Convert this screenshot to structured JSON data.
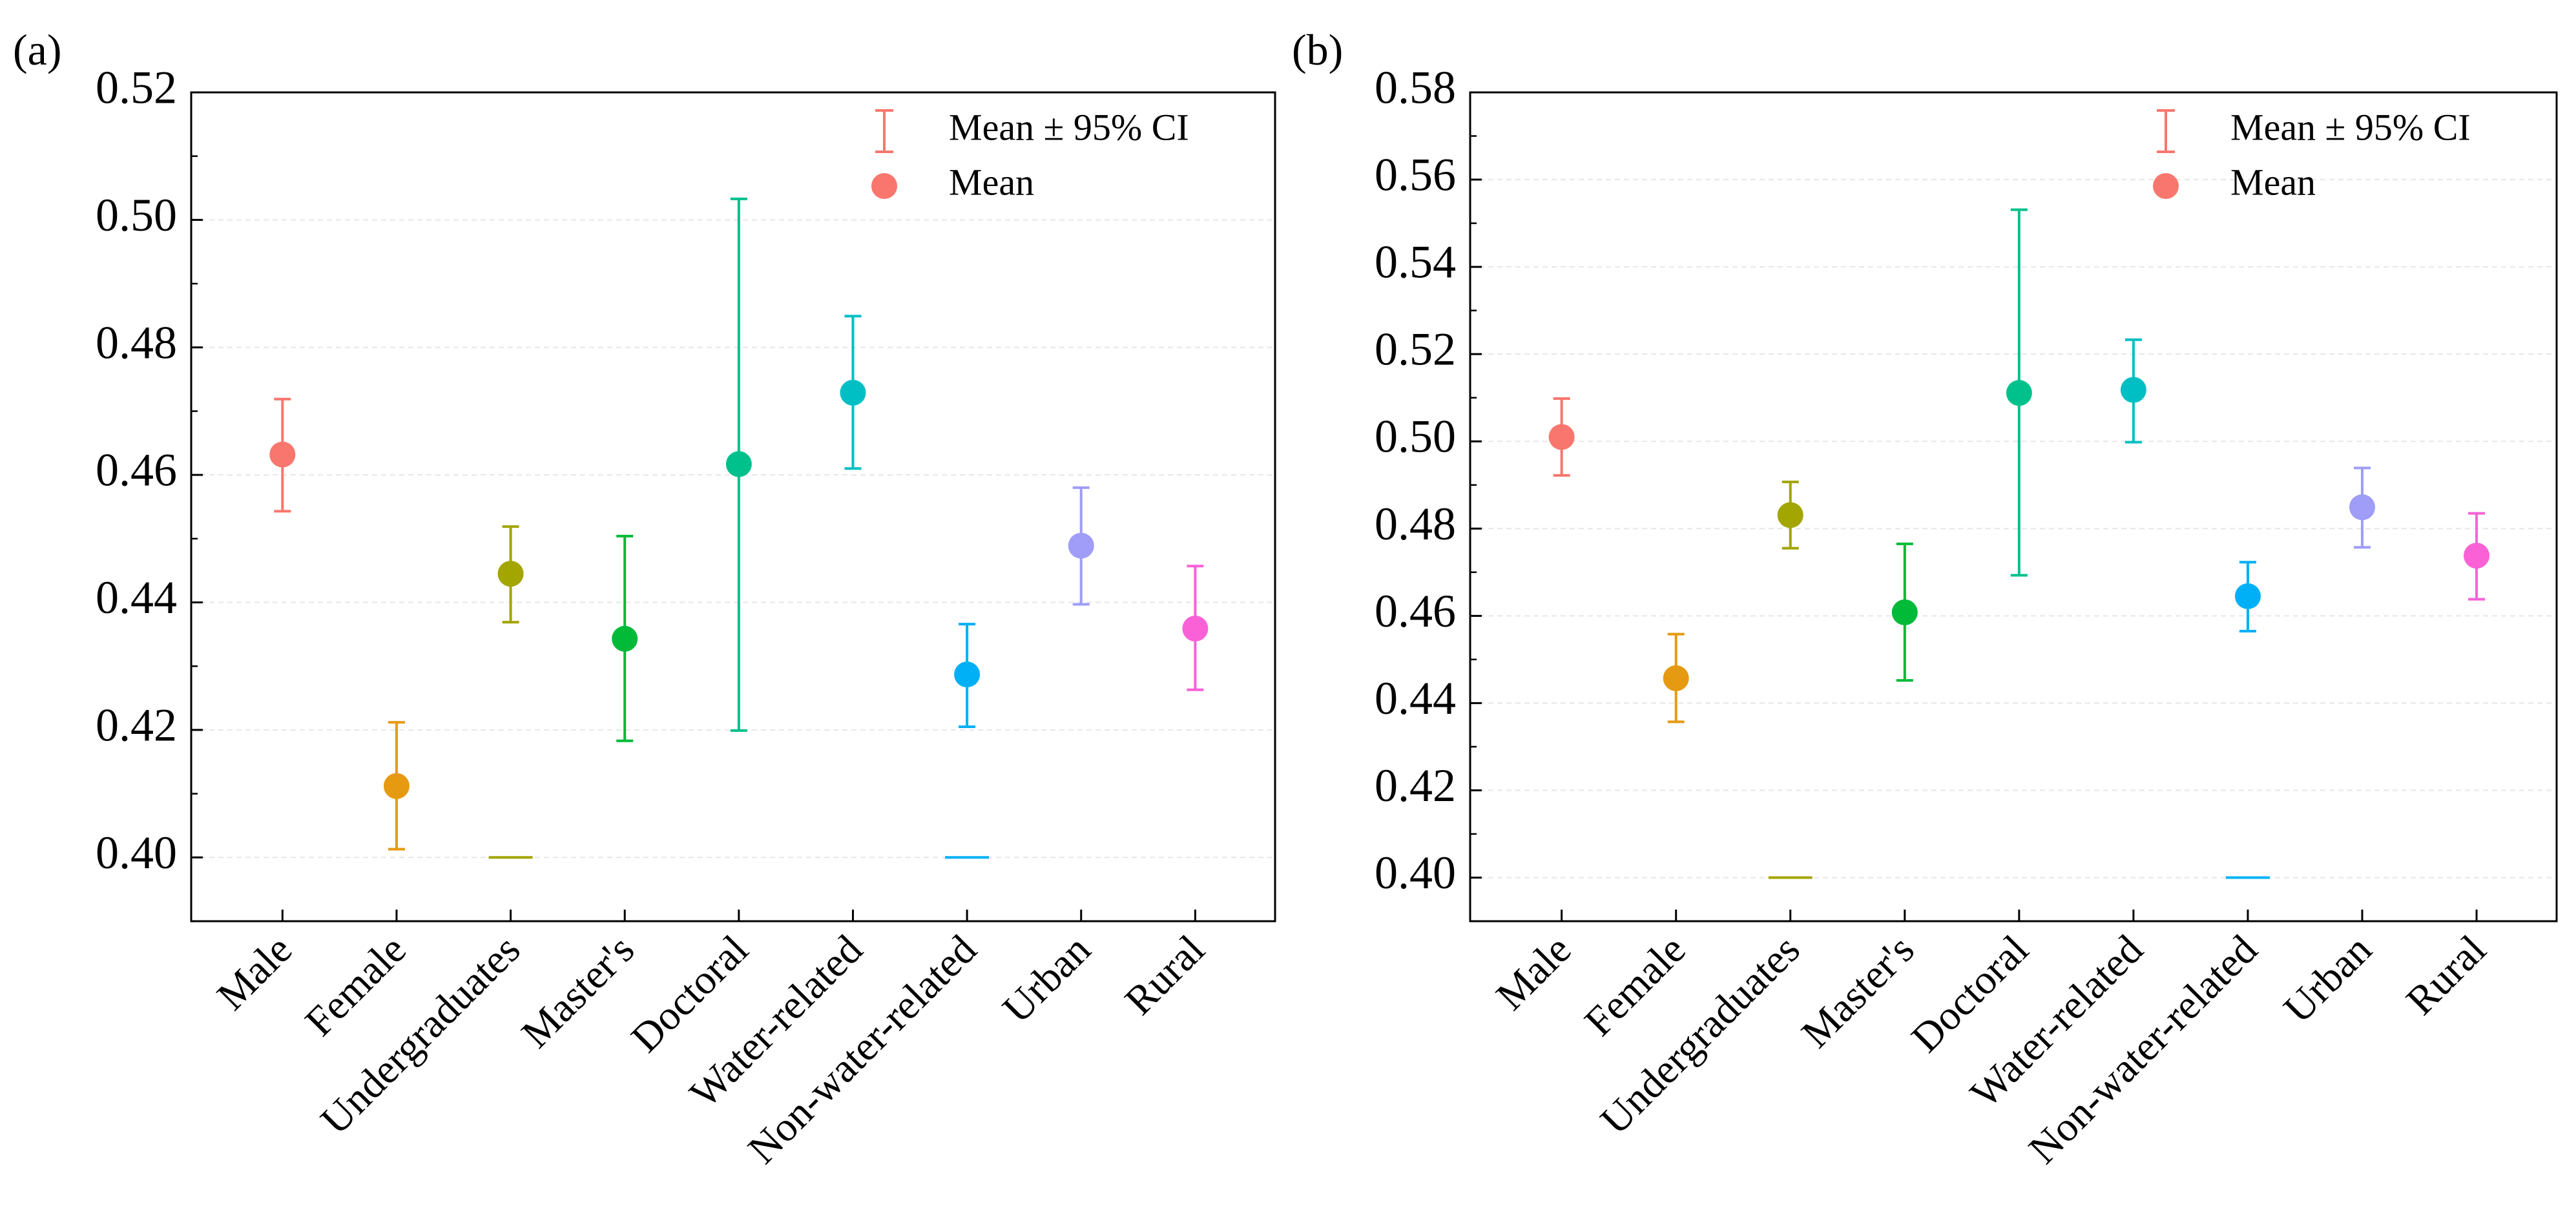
{
  "chart_data": [
    {
      "type": "scatter",
      "panel_label": "(a)",
      "title": "",
      "xlabel": "",
      "ylabel": "",
      "ylim": [
        0.39,
        0.52
      ],
      "yticks": [
        "0.40",
        "0.42",
        "0.44",
        "0.46",
        "0.48",
        "0.50",
        "0.52"
      ],
      "grid": true,
      "legend_position": "top-right",
      "legend": [
        "Mean ± 95% CI",
        "Mean"
      ],
      "categories": [
        "Male",
        "Female",
        "Undergraduates",
        "Master's",
        "Doctoral",
        "Water-related",
        "Non-water-related",
        "Urban",
        "Rural"
      ],
      "colors": [
        "#f8766d",
        "#e69a12",
        "#a3a500",
        "#00ba38",
        "#00c08b",
        "#00bfc4",
        "#00b0f6",
        "#9f9df8",
        "#fb61d7"
      ],
      "mean": [
        0.4632,
        0.4112,
        0.4445,
        0.4343,
        0.4617,
        0.4729,
        0.4287,
        0.4489,
        0.4359
      ],
      "ci_lower": [
        0.4543,
        0.4013,
        0.4369,
        0.4183,
        0.4199,
        0.461,
        0.4205,
        0.4397,
        0.4263
      ],
      "ci_upper": [
        0.4719,
        0.4212,
        0.4519,
        0.4504,
        0.5033,
        0.4849,
        0.4366,
        0.458,
        0.4457
      ],
      "flat_markers": [
        {
          "category": "Undergraduates",
          "value": 0.4
        },
        {
          "category": "Non-water-related",
          "value": 0.4
        }
      ]
    },
    {
      "type": "scatter",
      "panel_label": "(b)",
      "title": "",
      "xlabel": "",
      "ylabel": "",
      "ylim": [
        0.39,
        0.58
      ],
      "yticks": [
        "0.40",
        "0.42",
        "0.44",
        "0.46",
        "0.48",
        "0.50",
        "0.52",
        "0.54",
        "0.56",
        "0.58"
      ],
      "grid": true,
      "legend_position": "top-right",
      "legend": [
        "Mean ± 95% CI",
        "Mean"
      ],
      "categories": [
        "Male",
        "Female",
        "Undergraduates",
        "Master's",
        "Doctoral",
        "Water-related",
        "Non-water-related",
        "Urban",
        "Rural"
      ],
      "colors": [
        "#f8766d",
        "#e69a12",
        "#a3a500",
        "#00ba38",
        "#00c08b",
        "#00bfc4",
        "#00b0f6",
        "#9f9df8",
        "#fb61d7"
      ],
      "mean": [
        0.501,
        0.4457,
        0.4831,
        0.4608,
        0.5111,
        0.5118,
        0.4645,
        0.4849,
        0.4738
      ],
      "ci_lower": [
        0.4922,
        0.4357,
        0.4755,
        0.4452,
        0.4693,
        0.4998,
        0.4565,
        0.4757,
        0.4638
      ],
      "ci_upper": [
        0.5098,
        0.4558,
        0.4907,
        0.4765,
        0.5531,
        0.5233,
        0.4723,
        0.4939,
        0.4835
      ],
      "flat_markers": [
        {
          "category": "Undergraduates",
          "value": 0.4
        },
        {
          "category": "Non-water-related",
          "value": 0.4
        }
      ]
    }
  ]
}
